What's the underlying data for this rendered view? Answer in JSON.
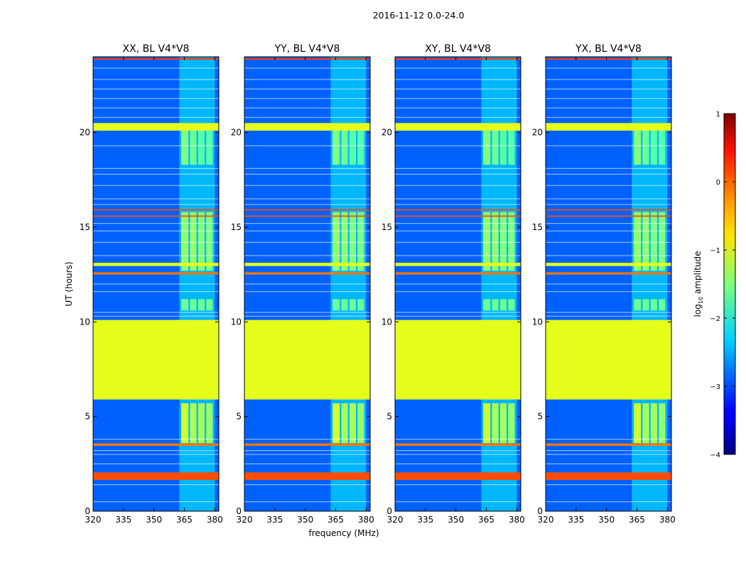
{
  "figure_title": "2016-11-12 0.0-24.0",
  "chart_data": {
    "type": "heatmap",
    "title": "2016-11-12 0.0-24.0",
    "xlabel": "frequency (MHz)",
    "ylabel": "UT (hours)",
    "xlim": [
      320,
      382
    ],
    "ylim": [
      0,
      24
    ],
    "xticks": [
      320,
      335,
      350,
      365,
      380
    ],
    "yticks": [
      0,
      5,
      10,
      15,
      20
    ],
    "panels": [
      {
        "title": "XX, BL V4*V8"
      },
      {
        "title": "YY, BL V4*V8"
      },
      {
        "title": "XY, BL V4*V8"
      },
      {
        "title": "YX, BL V4*V8"
      }
    ],
    "colorbar": {
      "label_prefix": "log",
      "label_sub": "10",
      "label_suffix": " amplitude",
      "range": [
        -4,
        1
      ],
      "ticks": [
        -4,
        -3,
        -2,
        -1,
        0,
        1
      ],
      "colormap": "jet"
    },
    "background_level": -2.9,
    "flagged_time_band": {
      "t_start": 5.9,
      "t_end": 10.1,
      "level": -1.0
    },
    "flag_bands": [
      {
        "t_start": 1.65,
        "t_end": 2.05,
        "level": 0.0
      },
      {
        "t_start": 3.45,
        "t_end": 3.58,
        "level": -0.2
      },
      {
        "t_start": 12.5,
        "t_end": 12.62,
        "level": -0.2
      },
      {
        "t_start": 12.95,
        "t_end": 13.12,
        "level": -1.0
      },
      {
        "t_start": 15.55,
        "t_end": 15.62,
        "level": 0.0
      },
      {
        "t_start": 15.88,
        "t_end": 15.95,
        "level": 0.0
      },
      {
        "t_start": 20.1,
        "t_end": 20.5,
        "level": -1.0
      },
      {
        "t_start": 23.85,
        "t_end": 23.93,
        "level": 0.1
      }
    ],
    "rfi_blocks": [
      {
        "f_start": 363.5,
        "f_end": 367.0,
        "t_start": 3.6,
        "t_end": 5.7,
        "level": -1.1
      },
      {
        "f_start": 367.8,
        "f_end": 371.0,
        "t_start": 3.6,
        "t_end": 5.7,
        "level": -1.3
      },
      {
        "f_start": 371.8,
        "f_end": 375.0,
        "t_start": 3.6,
        "t_end": 5.7,
        "level": -1.3
      },
      {
        "f_start": 375.8,
        "f_end": 379.0,
        "t_start": 3.6,
        "t_end": 5.7,
        "level": -1.4
      },
      {
        "f_start": 363.5,
        "f_end": 367.0,
        "t_start": 10.6,
        "t_end": 11.2,
        "level": -1.6
      },
      {
        "f_start": 367.8,
        "f_end": 371.0,
        "t_start": 10.6,
        "t_end": 11.2,
        "level": -1.6
      },
      {
        "f_start": 371.8,
        "f_end": 375.0,
        "t_start": 10.6,
        "t_end": 11.2,
        "level": -1.6
      },
      {
        "f_start": 375.8,
        "f_end": 379.0,
        "t_start": 10.6,
        "t_end": 11.2,
        "level": -1.6
      },
      {
        "f_start": 363.5,
        "f_end": 367.0,
        "t_start": 12.7,
        "t_end": 15.8,
        "level": -1.4
      },
      {
        "f_start": 367.8,
        "f_end": 371.0,
        "t_start": 12.7,
        "t_end": 15.8,
        "level": -1.4
      },
      {
        "f_start": 371.8,
        "f_end": 375.0,
        "t_start": 12.7,
        "t_end": 15.8,
        "level": -1.5
      },
      {
        "f_start": 375.8,
        "f_end": 379.0,
        "t_start": 12.7,
        "t_end": 15.8,
        "level": -1.5
      },
      {
        "f_start": 363.5,
        "f_end": 367.0,
        "t_start": 18.3,
        "t_end": 20.1,
        "level": -1.5
      },
      {
        "f_start": 367.8,
        "f_end": 371.0,
        "t_start": 18.3,
        "t_end": 20.1,
        "level": -1.6
      },
      {
        "f_start": 371.8,
        "f_end": 375.0,
        "t_start": 18.3,
        "t_end": 20.1,
        "level": -1.7
      },
      {
        "f_start": 375.8,
        "f_end": 379.0,
        "t_start": 18.3,
        "t_end": 20.1,
        "level": -1.7
      }
    ],
    "rfi_band_region": {
      "f_start": 362.5,
      "f_end": 380.0,
      "level": -2.1
    }
  }
}
